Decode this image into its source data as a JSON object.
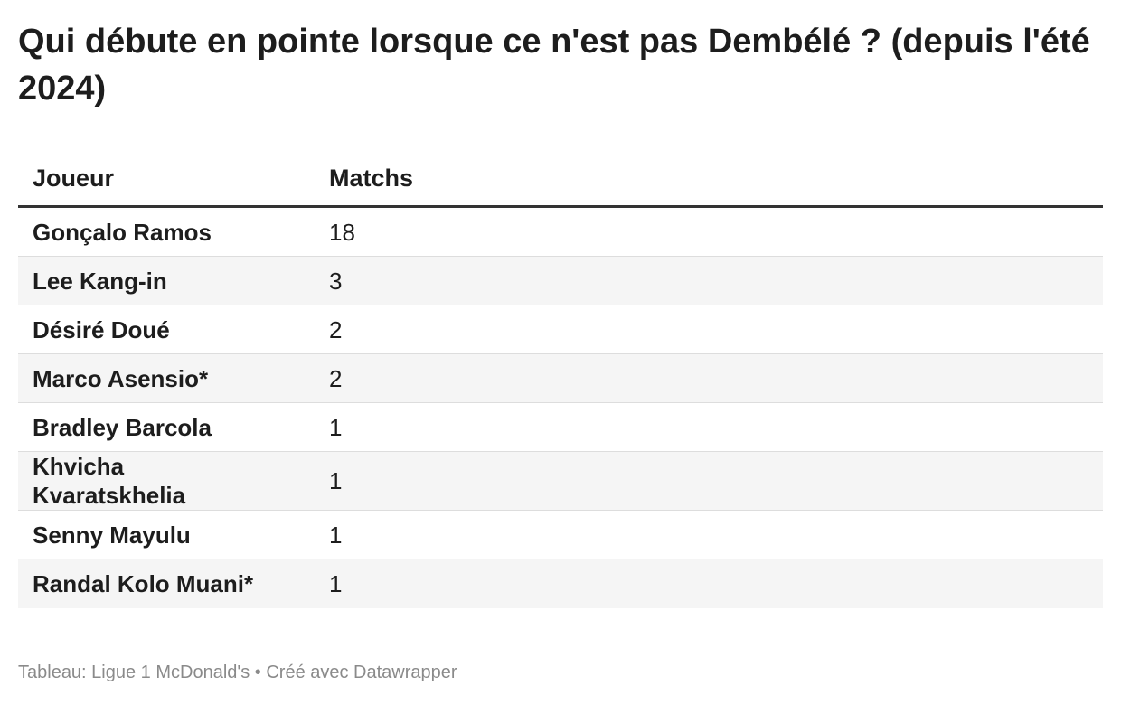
{
  "chart_data": {
    "type": "table",
    "title": "Qui débute en pointe lorsque ce n'est pas Dembélé ? (depuis l'été 2024)",
    "columns": [
      "Joueur",
      "Matchs"
    ],
    "rows": [
      {
        "player": "Gonçalo Ramos",
        "matches": "18"
      },
      {
        "player": "Lee Kang-in",
        "matches": "3"
      },
      {
        "player": "Désiré Doué",
        "matches": "2"
      },
      {
        "player": "Marco Asensio*",
        "matches": "2"
      },
      {
        "player": "Bradley Barcola",
        "matches": "1"
      },
      {
        "player": "Khvicha Kvaratskhelia",
        "matches": "1"
      },
      {
        "player": "Senny Mayulu",
        "matches": "1"
      },
      {
        "player": "Randal Kolo Muani*",
        "matches": "1"
      }
    ],
    "row_striping": true
  },
  "footer": {
    "source": "Tableau: Ligue 1 McDonald's",
    "separator": "•",
    "credit": "Créé avec Datawrapper"
  }
}
